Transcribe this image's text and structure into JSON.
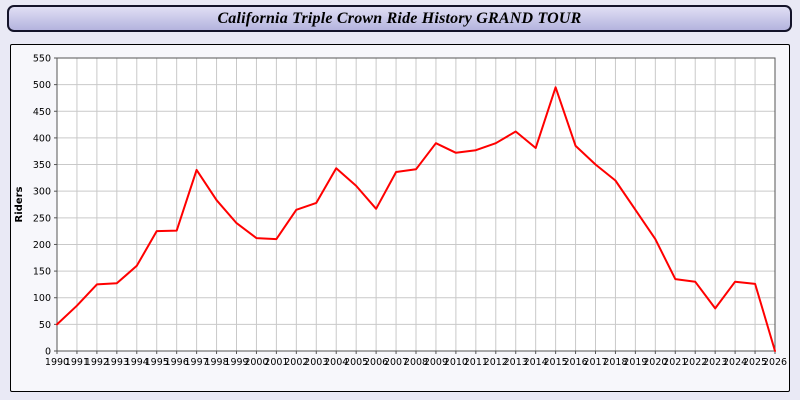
{
  "title": "California Triple Crown Ride History GRAND TOUR",
  "colors": {
    "line": "#ff0000",
    "page_bg": "#e9e9f5",
    "titlebar_bg": "#c6c6ea",
    "grid": "#c9c9c9",
    "plot_bg": "#ffffff",
    "axis": "#555555",
    "text": "#000000"
  },
  "chart_data": {
    "type": "line",
    "title": "California Triple Crown Ride History GRAND TOUR",
    "xlabel": "",
    "ylabel": "Riders",
    "ylim": [
      0,
      550
    ],
    "ytick_step": 50,
    "grid": true,
    "legend_position": "none",
    "x": [
      1990,
      1991,
      1992,
      1993,
      1994,
      1995,
      1996,
      1997,
      1998,
      1999,
      2000,
      2001,
      2002,
      2003,
      2004,
      2005,
      2006,
      2007,
      2008,
      2009,
      2010,
      2011,
      2012,
      2013,
      2014,
      2015,
      2016,
      2017,
      2018,
      2019,
      2020,
      2021,
      2022,
      2023,
      2024,
      2025,
      2026
    ],
    "series": [
      {
        "name": "Riders",
        "color": "#ff0000",
        "values": [
          50,
          85,
          125,
          127,
          160,
          225,
          226,
          340,
          283,
          240,
          212,
          210,
          265,
          278,
          343,
          310,
          267,
          336,
          341,
          390,
          372,
          377,
          390,
          412,
          381,
          495,
          385,
          350,
          320,
          265,
          210,
          135,
          130,
          80,
          130,
          126,
          0
        ]
      }
    ]
  }
}
